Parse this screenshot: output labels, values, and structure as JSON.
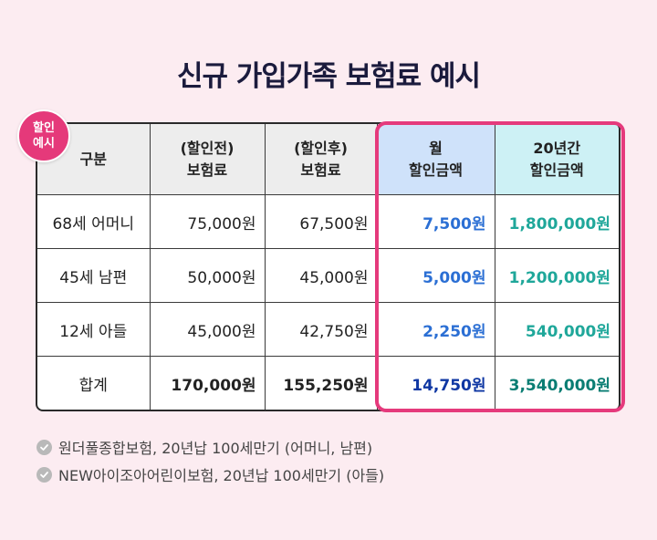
{
  "title": "신규 가입가족 보험료 예시",
  "badge": {
    "line1": "할인",
    "line2": "예시"
  },
  "table": {
    "headers": [
      {
        "line1": "구분",
        "line2": ""
      },
      {
        "line1": "(할인전)",
        "line2": "보험료"
      },
      {
        "line1": "(할인후)",
        "line2": "보험료"
      },
      {
        "line1": "월",
        "line2": "할인금액"
      },
      {
        "line1": "20년간",
        "line2": "할인금액"
      }
    ],
    "rows": [
      [
        "68세 어머니",
        "75,000원",
        "67,500원",
        "7,500원",
        "1,800,000원"
      ],
      [
        "45세 남편",
        "50,000원",
        "45,000원",
        "5,000원",
        "1,200,000원"
      ],
      [
        "12세 아들",
        "45,000원",
        "42,750원",
        "2,250원",
        "540,000원"
      ],
      [
        "합계",
        "170,000원",
        "155,250원",
        "14,750원",
        "3,540,000원"
      ]
    ]
  },
  "notes": [
    "원더풀종합보험, 20년납 100세만기 (어머니, 남편)",
    "NEW아이조아어린이보험, 20년납 100세만기 (아들)"
  ],
  "colors": {
    "accent": "#e53a7c",
    "blue": "#2b6fd4",
    "teal": "#1fa79a",
    "background": "#fcecf1"
  }
}
